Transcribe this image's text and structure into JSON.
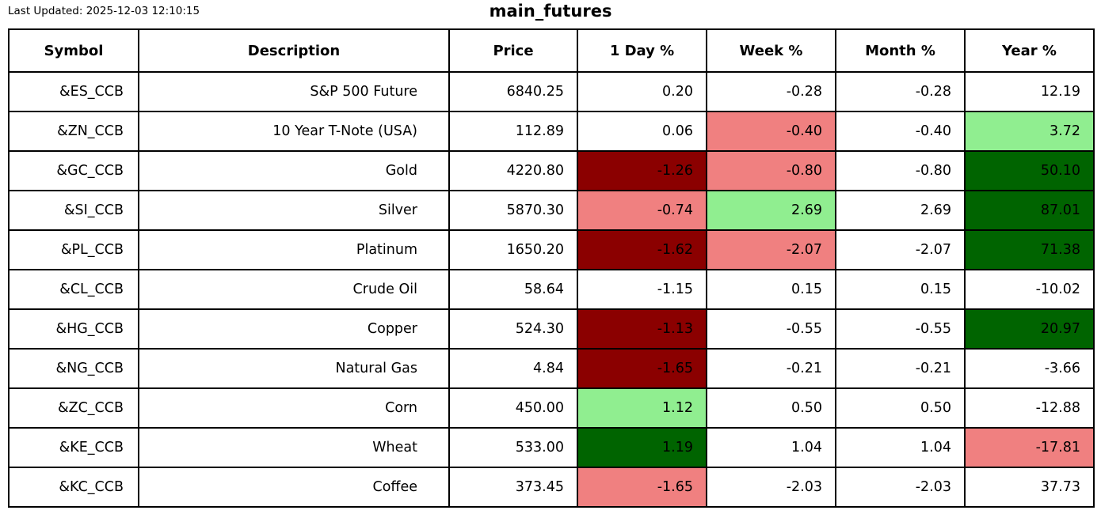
{
  "meta": {
    "last_updated": "Last Updated: 2025-12-03 12:10:15",
    "title": "main_futures"
  },
  "colors": {
    "light_red": "#f08080",
    "dark_red": "#8b0000",
    "light_green": "#90ee90",
    "dark_green": "#006400",
    "border": "#000000",
    "background": "#ffffff",
    "text": "#000000"
  },
  "chart_data": {
    "type": "table",
    "title": "main_futures",
    "columns": [
      "Symbol",
      "Description",
      "Price",
      "1 Day %",
      "Week %",
      "Month %",
      "Year %"
    ],
    "column_keys": [
      "symbol",
      "description",
      "price",
      "day-pct",
      "week-pct",
      "month-pct",
      "year-pct"
    ],
    "rows": [
      [
        "&ES_CCB",
        "S&P 500 Future",
        6840.25,
        0.2,
        -0.28,
        -0.28,
        12.19
      ],
      [
        "&ZN_CCB",
        "10 Year T-Note (USA)",
        112.89,
        0.06,
        -0.4,
        -0.4,
        3.72
      ],
      [
        "&GC_CCB",
        "Gold",
        4220.8,
        -1.26,
        -0.8,
        -0.8,
        50.1
      ],
      [
        "&SI_CCB",
        "Silver",
        5870.3,
        -0.74,
        2.69,
        2.69,
        87.01
      ],
      [
        "&PL_CCB",
        "Platinum",
        1650.2,
        -1.62,
        -2.07,
        -2.07,
        71.38
      ],
      [
        "&CL_CCB",
        "Crude Oil",
        58.64,
        -1.15,
        0.15,
        0.15,
        -10.02
      ],
      [
        "&HG_CCB",
        "Copper",
        524.3,
        -1.13,
        -0.55,
        -0.55,
        20.97
      ],
      [
        "&NG_CCB",
        "Natural Gas",
        4.84,
        -1.65,
        -0.21,
        -0.21,
        -3.66
      ],
      [
        "&ZC_CCB",
        "Corn",
        450.0,
        1.12,
        0.5,
        0.5,
        -12.88
      ],
      [
        "&KE_CCB",
        "Wheat",
        533.0,
        1.19,
        1.04,
        1.04,
        -17.81
      ],
      [
        "&KC_CCB",
        "Coffee",
        373.45,
        -1.65,
        -2.03,
        -2.03,
        37.73
      ]
    ],
    "cell_colors": [
      [
        null,
        null,
        null,
        null,
        null,
        null,
        null
      ],
      [
        null,
        null,
        null,
        null,
        "light_red",
        null,
        "light_green"
      ],
      [
        null,
        null,
        null,
        "dark_red",
        "light_red",
        null,
        "dark_green"
      ],
      [
        null,
        null,
        null,
        "light_red",
        "light_green",
        null,
        "dark_green"
      ],
      [
        null,
        null,
        null,
        "dark_red",
        "light_red",
        null,
        "dark_green"
      ],
      [
        null,
        null,
        null,
        null,
        null,
        null,
        null
      ],
      [
        null,
        null,
        null,
        "dark_red",
        null,
        null,
        "dark_green"
      ],
      [
        null,
        null,
        null,
        "dark_red",
        null,
        null,
        null
      ],
      [
        null,
        null,
        null,
        "light_green",
        null,
        null,
        null
      ],
      [
        null,
        null,
        null,
        "dark_green",
        null,
        null,
        "light_red"
      ],
      [
        null,
        null,
        null,
        "light_red",
        null,
        null,
        null
      ]
    ],
    "layout": {
      "header_bold": true,
      "cells_align": "right",
      "header_align": "center",
      "grid": true
    }
  }
}
